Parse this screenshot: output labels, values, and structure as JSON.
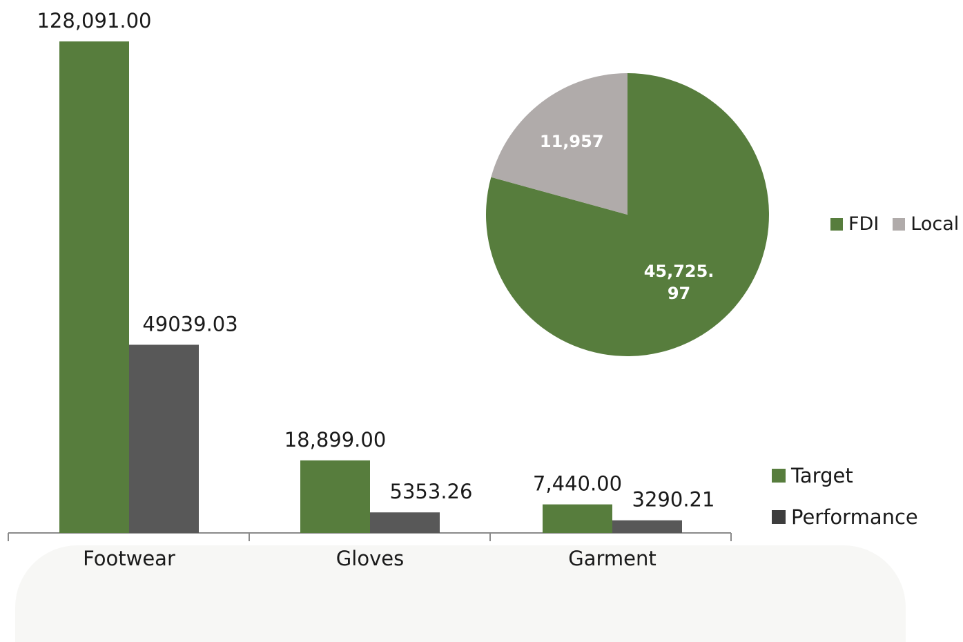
{
  "chart_data": [
    {
      "type": "bar",
      "categories": [
        "Footwear",
        "Gloves",
        "Garment"
      ],
      "series": [
        {
          "name": "Target",
          "values": [
            128091.0,
            18899.0,
            7440.0
          ],
          "labels": [
            "128,091.00",
            "18,899.00",
            "7,440.00"
          ],
          "color": "#577d3d"
        },
        {
          "name": "Performance",
          "values": [
            49039.03,
            5353.26,
            3290.21
          ],
          "labels": [
            "49039.03",
            "5353.26",
            "3290.21"
          ],
          "color": "#585858"
        }
      ],
      "ylim": [
        0,
        128091
      ],
      "grid": false,
      "legend_position": "bottom-right"
    },
    {
      "type": "pie",
      "slices": [
        {
          "name": "FDI",
          "value": 45725.97,
          "label": "45,725.\n97",
          "color": "#577d3d"
        },
        {
          "name": "Local",
          "value": 11957,
          "label": "11,957",
          "color": "#b0abaa"
        }
      ],
      "legend_position": "right"
    }
  ]
}
